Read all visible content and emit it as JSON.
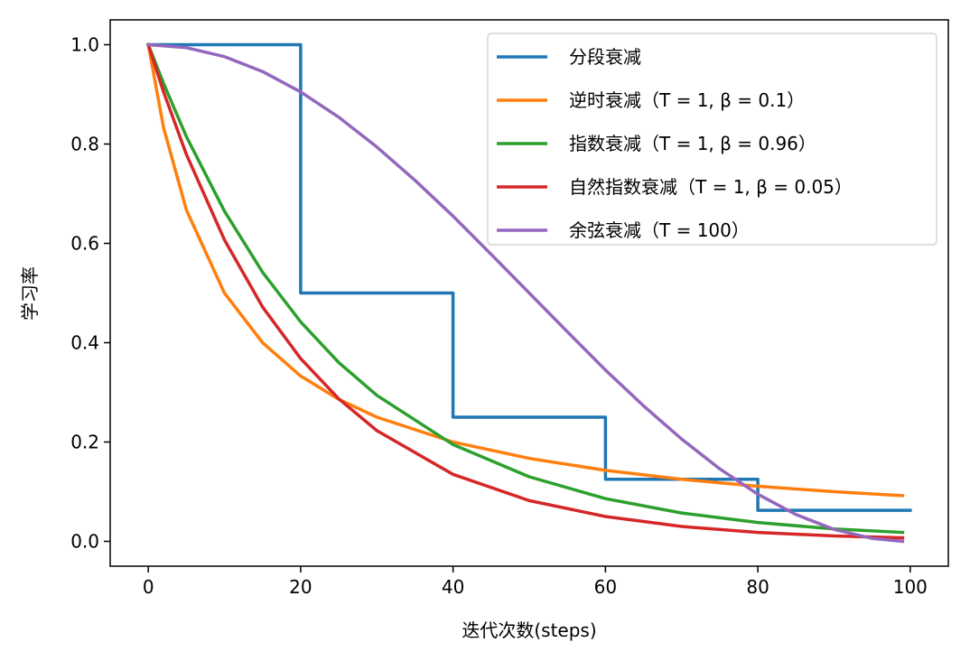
{
  "chart_data": {
    "type": "line",
    "xlabel": "迭代次数(steps)",
    "ylabel": "学习率",
    "xlim": [
      -5,
      105
    ],
    "ylim": [
      -0.05,
      1.05
    ],
    "xticks": [
      0,
      20,
      40,
      60,
      80,
      100
    ],
    "yticks": [
      0.0,
      0.2,
      0.4,
      0.6,
      0.8,
      1.0
    ],
    "xtick_labels": [
      "0",
      "20",
      "40",
      "60",
      "80",
      "100"
    ],
    "ytick_labels": [
      "0.0",
      "0.2",
      "0.4",
      "0.6",
      "0.8",
      "1.0"
    ],
    "grid": false,
    "legend_position": "top-right",
    "series": [
      {
        "name": "分段衰减",
        "color": "#1f77b4",
        "step": true,
        "points": [
          [
            0,
            1.0
          ],
          [
            20,
            1.0
          ],
          [
            20,
            0.5
          ],
          [
            40,
            0.5
          ],
          [
            40,
            0.25
          ],
          [
            60,
            0.25
          ],
          [
            60,
            0.125
          ],
          [
            80,
            0.125
          ],
          [
            80,
            0.0625
          ],
          [
            100,
            0.0625
          ]
        ]
      },
      {
        "name": "逆时衰减（T = 1, β = 0.1）",
        "color": "#ff7f0e",
        "x": [
          0,
          2,
          5,
          10,
          15,
          20,
          25,
          30,
          40,
          50,
          60,
          70,
          80,
          90,
          99
        ],
        "y": [
          1.0,
          0.833,
          0.667,
          0.5,
          0.4,
          0.333,
          0.286,
          0.25,
          0.2,
          0.167,
          0.143,
          0.125,
          0.111,
          0.1,
          0.092
        ]
      },
      {
        "name": "指数衰减（T = 1, β = 0.96）",
        "color": "#2ca02c",
        "x": [
          0,
          2,
          5,
          10,
          15,
          20,
          25,
          30,
          40,
          50,
          60,
          70,
          80,
          90,
          99
        ],
        "y": [
          1.0,
          0.922,
          0.815,
          0.665,
          0.542,
          0.442,
          0.36,
          0.294,
          0.195,
          0.13,
          0.086,
          0.057,
          0.038,
          0.025,
          0.018
        ]
      },
      {
        "name": "自然指数衰减（T = 1, β = 0.05）",
        "color": "#d62728",
        "x": [
          0,
          2,
          5,
          10,
          15,
          20,
          25,
          30,
          40,
          50,
          60,
          70,
          80,
          90,
          99
        ],
        "y": [
          1.0,
          0.905,
          0.779,
          0.607,
          0.472,
          0.368,
          0.287,
          0.223,
          0.135,
          0.082,
          0.05,
          0.03,
          0.018,
          0.011,
          0.007
        ]
      },
      {
        "name": "余弦衰减（T = 100）",
        "color": "#9467bd",
        "x": [
          0,
          5,
          10,
          15,
          20,
          25,
          30,
          35,
          40,
          45,
          50,
          55,
          60,
          65,
          70,
          75,
          80,
          85,
          90,
          95,
          99
        ],
        "y": [
          1.0,
          0.994,
          0.976,
          0.946,
          0.905,
          0.854,
          0.794,
          0.727,
          0.655,
          0.578,
          0.5,
          0.422,
          0.345,
          0.273,
          0.206,
          0.146,
          0.095,
          0.054,
          0.024,
          0.006,
          0.0
        ]
      }
    ]
  }
}
